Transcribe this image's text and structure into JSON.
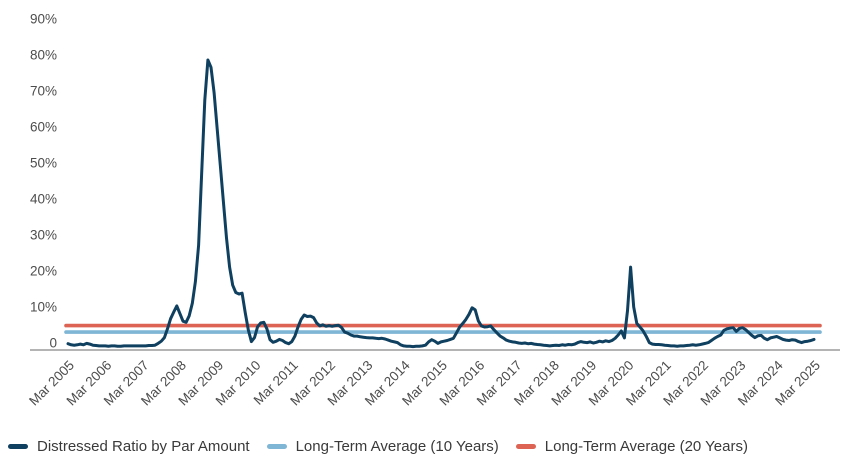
{
  "chart_data": {
    "type": "line",
    "title": "",
    "xlabel": "",
    "ylabel": "",
    "ylim": [
      0,
      90
    ],
    "grid": false,
    "legend_position": "bottom-left",
    "y_ticks": [
      "90%",
      "80%",
      "70%",
      "60%",
      "50%",
      "40%",
      "30%",
      "20%",
      "10%",
      "0"
    ],
    "x_tick_labels": [
      "Mar 2005",
      "Mar 2006",
      "Mar 2007",
      "Mar 2008",
      "Mar 2009",
      "Mar 2010",
      "Mar 2011",
      "Mar 2012",
      "Mar 2013",
      "Mar 2014",
      "Mar 2015",
      "Mar 2016",
      "Mar 2017",
      "Mar 2018",
      "Mar 2019",
      "Mar 2020",
      "Mar 2021",
      "Mar 2022",
      "Mar 2023",
      "Mar 2024",
      "Mar 2025"
    ],
    "x_start": "Mar 2005",
    "x_end": "Mar 2025",
    "x_resolution": "monthly",
    "series": [
      {
        "name": "Distressed Ratio by Par Amount",
        "color": "#10405f",
        "kind": "line",
        "monthly_values_pct": [
          0.9,
          0.6,
          0.5,
          0.6,
          0.8,
          0.6,
          1.0,
          0.8,
          0.5,
          0.4,
          0.3,
          0.3,
          0.3,
          0.2,
          0.3,
          0.3,
          0.2,
          0.2,
          0.3,
          0.3,
          0.3,
          0.3,
          0.3,
          0.3,
          0.3,
          0.3,
          0.4,
          0.4,
          0.5,
          1.0,
          1.6,
          2.6,
          5.0,
          7.8,
          9.6,
          11.3,
          9.2,
          7.1,
          6.8,
          8.6,
          12.0,
          18.0,
          28.0,
          48.0,
          68.0,
          79.0,
          77.0,
          70.0,
          60.0,
          50.0,
          40.0,
          30.0,
          22.0,
          17.0,
          15.0,
          14.6,
          14.8,
          9.5,
          4.7,
          1.5,
          2.6,
          5.6,
          6.6,
          6.8,
          5.0,
          2.0,
          1.3,
          1.6,
          2.1,
          1.8,
          1.2,
          0.9,
          1.5,
          3.0,
          5.5,
          7.6,
          8.8,
          8.4,
          8.5,
          8.1,
          6.6,
          5.8,
          6.1,
          5.7,
          5.9,
          5.7,
          5.9,
          6.0,
          5.4,
          4.1,
          3.8,
          3.3,
          3.0,
          3.0,
          2.8,
          2.7,
          2.6,
          2.5,
          2.5,
          2.4,
          2.3,
          2.4,
          2.2,
          1.9,
          1.6,
          1.4,
          1.2,
          0.6,
          0.3,
          0.2,
          0.2,
          0.1,
          0.2,
          0.2,
          0.3,
          0.5,
          1.4,
          2.0,
          1.6,
          1.0,
          1.4,
          1.6,
          1.8,
          2.1,
          2.4,
          3.9,
          5.5,
          6.5,
          7.6,
          9.0,
          10.8,
          10.2,
          7.2,
          5.8,
          5.5,
          5.6,
          5.8,
          4.8,
          3.9,
          3.0,
          2.5,
          1.9,
          1.6,
          1.4,
          1.3,
          1.1,
          1.0,
          1.1,
          0.9,
          1.0,
          0.8,
          0.7,
          0.6,
          0.5,
          0.4,
          0.3,
          0.4,
          0.5,
          0.4,
          0.6,
          0.5,
          0.7,
          0.6,
          0.8,
          1.2,
          1.5,
          1.3,
          1.2,
          1.4,
          1.1,
          1.3,
          1.6,
          1.4,
          1.7,
          1.5,
          1.8,
          2.4,
          3.3,
          4.4,
          2.5,
          10.0,
          22.0,
          11.0,
          6.5,
          5.5,
          4.5,
          3.0,
          1.2,
          0.8,
          0.7,
          0.7,
          0.6,
          0.5,
          0.4,
          0.3,
          0.3,
          0.2,
          0.3,
          0.3,
          0.4,
          0.5,
          0.6,
          0.5,
          0.6,
          0.8,
          1.0,
          1.2,
          1.8,
          2.4,
          2.9,
          3.3,
          4.6,
          5.0,
          5.2,
          5.3,
          4.3,
          5.1,
          5.3,
          4.8,
          4.0,
          3.2,
          2.6,
          3.1,
          3.2,
          2.4,
          2.0,
          2.5,
          2.7,
          2.9,
          2.5,
          2.1,
          1.9,
          1.8,
          2.0,
          1.9,
          1.5,
          1.2,
          1.5,
          1.6,
          1.8,
          2.1
        ]
      },
      {
        "name": "Long-Term Average (10 Years)",
        "color": "#7fb5d5",
        "kind": "hline",
        "value_pct": 4.1
      },
      {
        "name": "Long-Term Average (20 Years)",
        "color": "#dd6455",
        "kind": "hline",
        "value_pct": 5.9
      }
    ]
  },
  "legend": {
    "items": [
      {
        "label": "Distressed Ratio by Par Amount"
      },
      {
        "label": "Long-Term Average (10 Years)"
      },
      {
        "label": "Long-Term Average (20 Years)"
      }
    ]
  },
  "colors": {
    "background": "#ffffff",
    "axis_line": "#9b9b9b",
    "tick_text": "#4d4d4d",
    "legend_text": "#3a3a3a"
  }
}
